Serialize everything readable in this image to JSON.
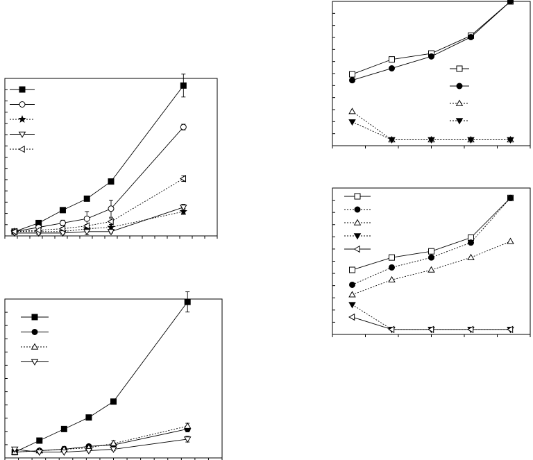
{
  "chart_data": [
    {
      "id": "panel-a",
      "type": "line",
      "title": "",
      "xlabel": "",
      "ylabel": "",
      "x": [
        0,
        1,
        2,
        3,
        4,
        7
      ],
      "xlim": [
        -0.4,
        8.4
      ],
      "ylim": [
        0,
        11
      ],
      "grid": false,
      "legend": "top-left",
      "series": [
        {
          "marker": "square-filled",
          "dash": "solid",
          "values": [
            0.3,
            0.9,
            1.8,
            2.6,
            3.8,
            10.5
          ],
          "errors": [
            0.1,
            0.1,
            0.1,
            0.1,
            0.1,
            0.8
          ]
        },
        {
          "marker": "circle-open",
          "dash": "solid",
          "values": [
            0.3,
            0.6,
            0.9,
            1.2,
            1.9,
            7.6
          ],
          "errors": [
            0,
            0.1,
            0.2,
            0.5,
            0.6,
            0.2
          ]
        },
        {
          "marker": "star-filled",
          "dash": "dotted",
          "values": [
            0.3,
            0.3,
            0.3,
            0.5,
            0.6,
            1.7
          ],
          "errors": [
            0,
            0,
            0,
            0.2,
            0.2,
            0.2
          ]
        },
        {
          "marker": "triangle-down-open",
          "dash": "solid",
          "values": [
            0.2,
            0.2,
            0.2,
            0.3,
            0.3,
            2.0
          ],
          "errors": [
            0,
            0,
            0,
            0.2,
            0.1,
            0.2
          ]
        },
        {
          "marker": "triangle-left-open",
          "dash": "dotted",
          "values": [
            0.3,
            0.4,
            0.5,
            0.7,
            1.0,
            4.0
          ],
          "errors": [
            0,
            0,
            0.1,
            0.1,
            0.2,
            0.2
          ]
        }
      ]
    },
    {
      "id": "panel-b",
      "type": "line",
      "title": "",
      "xlabel": "",
      "ylabel": "",
      "x": [
        0,
        1,
        2,
        3,
        4,
        7
      ],
      "xlim": [
        -0.4,
        8.4
      ],
      "ylim": [
        0,
        11
      ],
      "grid": false,
      "legend": "top-left",
      "series": [
        {
          "marker": "square-filled",
          "dash": "solid",
          "values": [
            0.4,
            1.2,
            2.0,
            2.8,
            3.9,
            10.8
          ],
          "errors": [
            0.1,
            0.1,
            0.1,
            0.1,
            0.1,
            0.7
          ]
        },
        {
          "marker": "circle-filled",
          "dash": "solid",
          "values": [
            0.4,
            0.5,
            0.6,
            0.8,
            0.9,
            2.0
          ],
          "errors": [
            0,
            0,
            0,
            0.1,
            0.1,
            0.2
          ]
        },
        {
          "marker": "triangle-up-open",
          "dash": "dotted",
          "values": [
            0.4,
            0.5,
            0.6,
            0.7,
            1.0,
            2.2
          ],
          "errors": [
            0,
            0,
            0.2,
            0.2,
            0.2,
            0.2
          ]
        },
        {
          "marker": "triangle-down-open",
          "dash": "solid",
          "values": [
            0.6,
            0.4,
            0.4,
            0.5,
            0.6,
            1.3
          ],
          "errors": [
            0.1,
            0,
            0,
            0.1,
            0.1,
            0.2
          ]
        }
      ]
    },
    {
      "id": "panel-c",
      "type": "line",
      "title": "",
      "xlabel": "",
      "ylabel": "",
      "x": [
        0,
        1,
        2,
        3,
        4
      ],
      "xlim": [
        -0.5,
        4.5
      ],
      "ylim": [
        -0.2,
        9.5
      ],
      "grid": false,
      "legend": "right",
      "series": [
        {
          "marker": "square-open",
          "dash": "solid",
          "values": [
            4.6,
            5.6,
            6.0,
            7.2,
            9.5
          ]
        },
        {
          "marker": "circle-filled",
          "dash": "solid",
          "values": [
            4.2,
            5.0,
            5.8,
            7.1,
            9.5
          ]
        },
        {
          "marker": "triangle-up-open",
          "dash": "dotted",
          "values": [
            2.1,
            0.2,
            0.2,
            0.2,
            0.2
          ]
        },
        {
          "marker": "triangle-down-filled",
          "dash": "dotted",
          "values": [
            1.4,
            0.2,
            0.2,
            0.2,
            0.2
          ]
        }
      ]
    },
    {
      "id": "panel-d",
      "type": "line",
      "title": "",
      "xlabel": "",
      "ylabel": "",
      "x": [
        0,
        1,
        2,
        3,
        4
      ],
      "xlim": [
        -0.5,
        4.5
      ],
      "ylim": [
        -0.2,
        11.6
      ],
      "grid": false,
      "legend": "top-left",
      "series": [
        {
          "marker": "square-open",
          "dash": "solid",
          "values": [
            5.0,
            6.0,
            6.5,
            7.6,
            10.8
          ]
        },
        {
          "marker": "circle-filled",
          "dash": "dotted",
          "values": [
            3.8,
            5.2,
            6.0,
            7.2,
            10.8
          ]
        },
        {
          "marker": "triangle-up-open",
          "dash": "dotted",
          "values": [
            3.0,
            4.2,
            5.0,
            6.0,
            7.3
          ]
        },
        {
          "marker": "triangle-down-filled",
          "dash": "dotted",
          "values": [
            2.2,
            0.2,
            0.2,
            0.2,
            0.2
          ]
        },
        {
          "marker": "triangle-left-open",
          "dash": "solid",
          "values": [
            1.2,
            0.2,
            0.2,
            0.2,
            0.2
          ]
        }
      ]
    }
  ]
}
